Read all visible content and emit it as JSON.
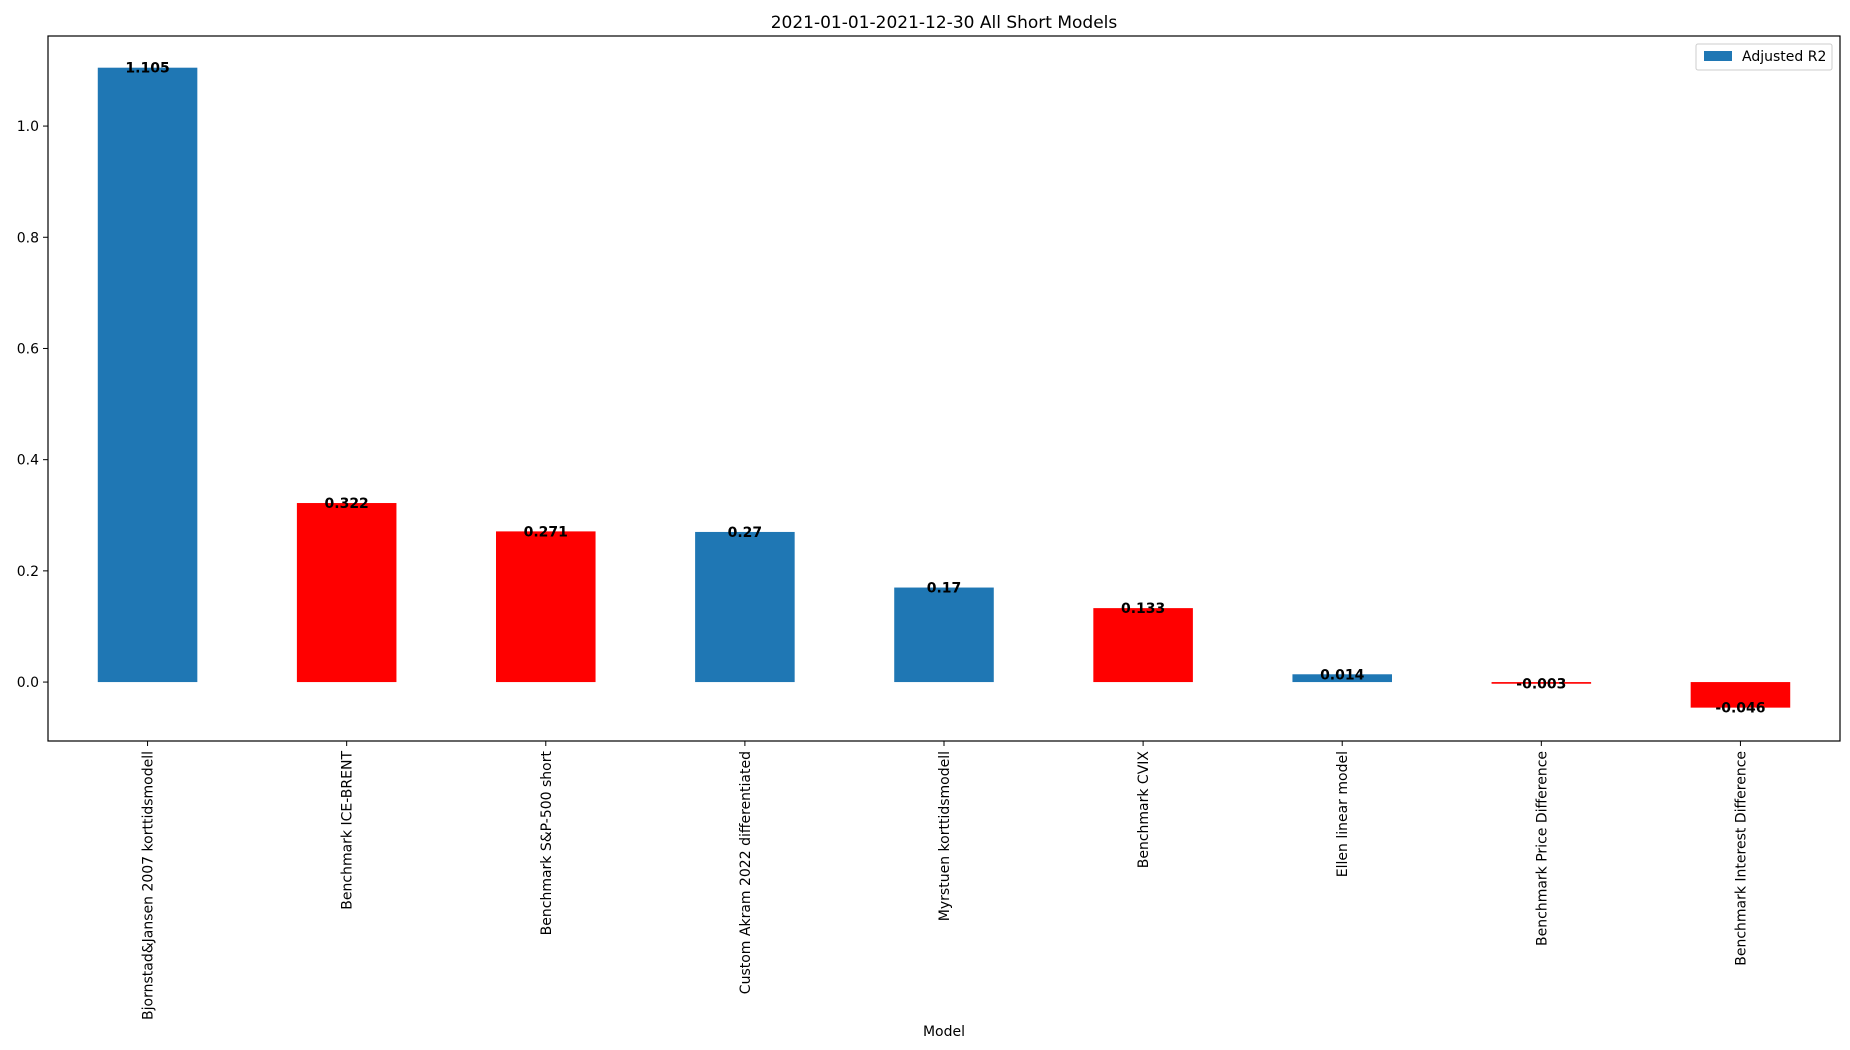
{
  "chart_data": {
    "type": "bar",
    "title": "2021-01-01-2021-12-30 All Short Models",
    "xlabel": "Model",
    "ylabel": "",
    "ylim": [
      -0.106,
      1.162
    ],
    "yticks": [
      0.0,
      0.2,
      0.4,
      0.6,
      0.8,
      1.0
    ],
    "ytick_labels": [
      "0.0",
      "0.2",
      "0.4",
      "0.6",
      "0.8",
      "1.0"
    ],
    "grid": false,
    "legend": {
      "position": "top-right",
      "entries": [
        {
          "label": "Adjusted R2",
          "color": "#1f77b4"
        }
      ]
    },
    "categories": [
      "Bjornstad&Jansen 2007 korttidsmodell",
      "Benchmark ICE-BRENT",
      "Benchmark S&P-500 short",
      "Custom Akram 2022 differentiated",
      "Myrstuen korttidsmodell",
      "Benchmark CVIX",
      "Ellen linear model",
      "Benchmark Price Difference",
      "Benchmark Interest Difference"
    ],
    "series": [
      {
        "name": "Adjusted R2",
        "values": [
          1.105,
          0.322,
          0.271,
          0.27,
          0.17,
          0.133,
          0.014,
          -0.003,
          -0.046
        ],
        "value_labels": [
          "1.105",
          "0.322",
          "0.271",
          "0.27",
          "0.17",
          "0.133",
          "0.014",
          "-0.003",
          "-0.046"
        ],
        "colors": [
          "#1f77b4",
          "#ff0000",
          "#ff0000",
          "#1f77b4",
          "#1f77b4",
          "#ff0000",
          "#1f77b4",
          "#ff0000",
          "#ff0000"
        ]
      }
    ]
  }
}
